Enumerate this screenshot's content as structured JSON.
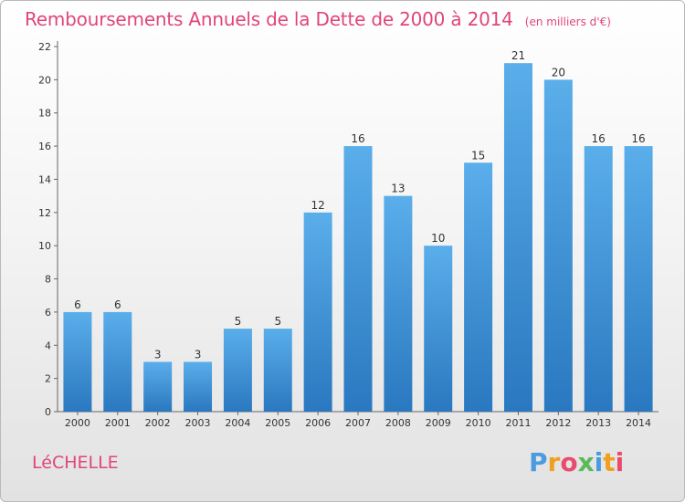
{
  "header": {
    "title": "Remboursements Annuels de la Dette de 2000 à 2014",
    "subtitle": "(en milliers d'€)"
  },
  "footer": {
    "commune": "LéCHELLE",
    "logo_letters": [
      "P",
      "r",
      "o",
      "x",
      "i",
      "t",
      "i"
    ],
    "logo_colors": [
      "#4a9be0",
      "#f0a020",
      "#e94c6c",
      "#5cb85c",
      "#4a9be0",
      "#f0a020",
      "#e94c6c"
    ]
  },
  "chart_data": {
    "type": "bar",
    "categories": [
      "2000",
      "2001",
      "2002",
      "2003",
      "2004",
      "2005",
      "2006",
      "2007",
      "2008",
      "2009",
      "2010",
      "2011",
      "2012",
      "2013",
      "2014"
    ],
    "values": [
      6,
      6,
      3,
      3,
      5,
      5,
      12,
      16,
      13,
      10,
      15,
      21,
      20,
      16,
      16
    ],
    "title": "Remboursements Annuels de la Dette de 2000 à 2014",
    "subtitle": "(en milliers d'€)",
    "xlabel": "",
    "ylabel": "",
    "ylim": [
      0,
      22
    ],
    "yticks": [
      0,
      2,
      4,
      6,
      8,
      10,
      12,
      14,
      16,
      18,
      20,
      22
    ],
    "grid": false,
    "bar_color": "#3b8fd8"
  }
}
